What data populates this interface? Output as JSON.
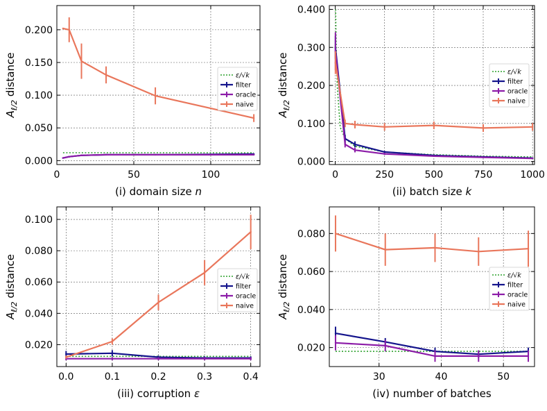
{
  "figure": {
    "type": "multi-panel line chart with error bars"
  },
  "colors": {
    "reference": "#2ca02c",
    "filter": "#14148c",
    "oracle": "#8c1ca8",
    "naive": "#e9765b",
    "grid": "#555555"
  },
  "chart_data": [
    {
      "type": "line",
      "title": "",
      "xlabel_prefix": "(i) domain size ",
      "xlabel_var": "n",
      "ylabel_main": "A",
      "ylabel_sub": "ℓ/2",
      "ylabel_rest": " distance",
      "xlim": [
        0,
        132
      ],
      "ylim": [
        -0.006,
        0.237
      ],
      "xticks": [
        0,
        50,
        100
      ],
      "xtick_labels": [
        "0",
        "50",
        "100"
      ],
      "yticks": [
        0,
        0.05,
        0.1,
        0.15,
        0.2
      ],
      "ytick_labels": [
        "0.000",
        "0.050",
        "0.100",
        "0.150",
        "0.200"
      ],
      "legend_position": "center-right",
      "series": [
        {
          "name": "ε/√k",
          "key": "reference",
          "style": "dotted",
          "x": [
            4,
            128
          ],
          "y": [
            0.012,
            0.012
          ],
          "err": []
        },
        {
          "name": "filter",
          "key": "filter",
          "style": "solid",
          "x": [
            4,
            8,
            16,
            32,
            64,
            128
          ],
          "y": [
            0.004,
            0.006,
            0.008,
            0.009,
            0.009,
            0.01
          ],
          "err": [
            0.001,
            0.001,
            0.001,
            0.001,
            0.001,
            0.001
          ]
        },
        {
          "name": "oracle",
          "key": "oracle",
          "style": "solid",
          "x": [
            4,
            8,
            16,
            32,
            64,
            128
          ],
          "y": [
            0.004,
            0.006,
            0.008,
            0.009,
            0.009,
            0.009
          ],
          "err": [
            0.001,
            0.001,
            0.001,
            0.001,
            0.001,
            0.001
          ]
        },
        {
          "name": "naive",
          "key": "naive",
          "style": "solid",
          "x": [
            4,
            8,
            16,
            32,
            64,
            128
          ],
          "y": [
            0.202,
            0.2,
            0.152,
            0.131,
            0.099,
            0.065
          ],
          "err": [
            0,
            0.019,
            0.027,
            0.013,
            0.013,
            0.006
          ]
        }
      ]
    },
    {
      "type": "line",
      "title": "",
      "xlabel_prefix": "(ii) batch size ",
      "xlabel_var": "k",
      "ylabel_main": "A",
      "ylabel_sub": "ℓ/2",
      "ylabel_rest": " distance",
      "xlim": [
        -30,
        1010
      ],
      "ylim": [
        -0.008,
        0.41
      ],
      "xticks": [
        0,
        250,
        500,
        750,
        1000
      ],
      "xtick_labels": [
        "0",
        "250",
        "500",
        "750",
        "1000"
      ],
      "yticks": [
        0,
        0.1,
        0.2,
        0.3,
        0.4
      ],
      "ytick_labels": [
        "0.000",
        "0.100",
        "0.200",
        "0.300",
        "0.400"
      ],
      "legend_position": "center-right",
      "series": [
        {
          "name": "ε/√k",
          "key": "reference",
          "style": "dotted",
          "x": [
            2,
            5,
            10,
            25,
            50,
            100,
            250,
            500,
            750,
            1000
          ],
          "y": [
            0.4,
            0.3,
            0.2,
            0.09,
            0.06,
            0.04,
            0.025,
            0.018,
            0.014,
            0.012
          ],
          "err": []
        },
        {
          "name": "filter",
          "key": "filter",
          "style": "solid",
          "x": [
            1,
            50,
            100,
            250,
            500,
            750,
            1000
          ],
          "y": [
            0.3,
            0.06,
            0.045,
            0.025,
            0.016,
            0.012,
            0.009
          ],
          "err": [
            0.03,
            0.01,
            0.008,
            0.003,
            0.002,
            0.002,
            0.001
          ]
        },
        {
          "name": "oracle",
          "key": "oracle",
          "style": "solid",
          "x": [
            1,
            50,
            100,
            250,
            500,
            750,
            1000
          ],
          "y": [
            0.29,
            0.045,
            0.03,
            0.02,
            0.014,
            0.011,
            0.008
          ],
          "err": [
            0.05,
            0.008,
            0.006,
            0.003,
            0.002,
            0.002,
            0.001
          ]
        },
        {
          "name": "naive",
          "key": "naive",
          "style": "solid",
          "x": [
            1,
            50,
            100,
            250,
            500,
            750,
            1000
          ],
          "y": [
            0.26,
            0.1,
            0.097,
            0.091,
            0.095,
            0.088,
            0.091
          ],
          "err": [
            0.03,
            0.01,
            0.01,
            0.01,
            0.01,
            0.01,
            0.01
          ]
        }
      ]
    },
    {
      "type": "line",
      "title": "",
      "xlabel_prefix": "(iii) corruption ",
      "xlabel_var": "ε",
      "ylabel_main": "A",
      "ylabel_sub": "ℓ/2",
      "ylabel_rest": " distance",
      "xlim": [
        -0.02,
        0.42
      ],
      "ylim": [
        0.006,
        0.108
      ],
      "xticks": [
        0,
        0.1,
        0.2,
        0.3,
        0.4
      ],
      "xtick_labels": [
        "0.0",
        "0.1",
        "0.2",
        "0.3",
        "0.4"
      ],
      "yticks": [
        0.02,
        0.04,
        0.06,
        0.08,
        0.1
      ],
      "ytick_labels": [
        "0.020",
        "0.040",
        "0.060",
        "0.080",
        "0.100"
      ],
      "legend_position": "center-right",
      "series": [
        {
          "name": "ε/√k",
          "key": "reference",
          "style": "dotted",
          "x": [
            0,
            0.4
          ],
          "y": [
            0.0125,
            0.0125
          ],
          "err": []
        },
        {
          "name": "filter",
          "key": "filter",
          "style": "solid",
          "x": [
            0,
            0.1,
            0.2,
            0.3,
            0.4
          ],
          "y": [
            0.014,
            0.0145,
            0.012,
            0.0115,
            0.0115
          ],
          "err": [
            0.002,
            0.002,
            0.001,
            0.001,
            0.001
          ]
        },
        {
          "name": "oracle",
          "key": "oracle",
          "style": "solid",
          "x": [
            0,
            0.1,
            0.2,
            0.3,
            0.4
          ],
          "y": [
            0.011,
            0.011,
            0.011,
            0.011,
            0.011
          ],
          "err": [
            0.001,
            0.001,
            0.001,
            0.001,
            0.001
          ]
        },
        {
          "name": "naive",
          "key": "naive",
          "style": "solid",
          "x": [
            0,
            0.1,
            0.2,
            0.3,
            0.4
          ],
          "y": [
            0.012,
            0.022,
            0.047,
            0.066,
            0.092
          ],
          "err": [
            0.001,
            0.002,
            0.005,
            0.008,
            0.011
          ]
        }
      ]
    },
    {
      "type": "line",
      "title": "",
      "xlabel_prefix": "(iv) number of batches",
      "xlabel_var": "",
      "ylabel_main": "A",
      "ylabel_sub": "ℓ/2",
      "ylabel_rest": " distance",
      "xlim": [
        22,
        55
      ],
      "ylim": [
        0.01,
        0.094
      ],
      "xticks": [
        30,
        40,
        50
      ],
      "xtick_labels": [
        "30",
        "40",
        "50"
      ],
      "yticks": [
        0.02,
        0.04,
        0.06,
        0.08
      ],
      "ytick_labels": [
        "0.020",
        "0.040",
        "0.060",
        "0.080"
      ],
      "legend_position": "center-right",
      "series": [
        {
          "name": "ε/√k",
          "key": "reference",
          "style": "dotted",
          "x": [
            23,
            54
          ],
          "y": [
            0.018,
            0.018
          ],
          "err": []
        },
        {
          "name": "filter",
          "key": "filter",
          "style": "solid",
          "x": [
            23,
            31,
            39,
            46,
            54
          ],
          "y": [
            0.0275,
            0.023,
            0.018,
            0.0165,
            0.018
          ],
          "err": [
            0.0035,
            0.002,
            0.002,
            0.002,
            0.002
          ]
        },
        {
          "name": "oracle",
          "key": "oracle",
          "style": "solid",
          "x": [
            23,
            31,
            39,
            46,
            54
          ],
          "y": [
            0.0225,
            0.021,
            0.0155,
            0.0155,
            0.0155
          ],
          "err": [
            0.004,
            0.003,
            0.003,
            0.003,
            0.003
          ]
        },
        {
          "name": "naive",
          "key": "naive",
          "style": "solid",
          "x": [
            23,
            31,
            39,
            46,
            54
          ],
          "y": [
            0.08,
            0.0715,
            0.0725,
            0.0705,
            0.072
          ],
          "err": [
            0.0095,
            0.0085,
            0.0075,
            0.0075,
            0.0095
          ]
        }
      ]
    }
  ]
}
